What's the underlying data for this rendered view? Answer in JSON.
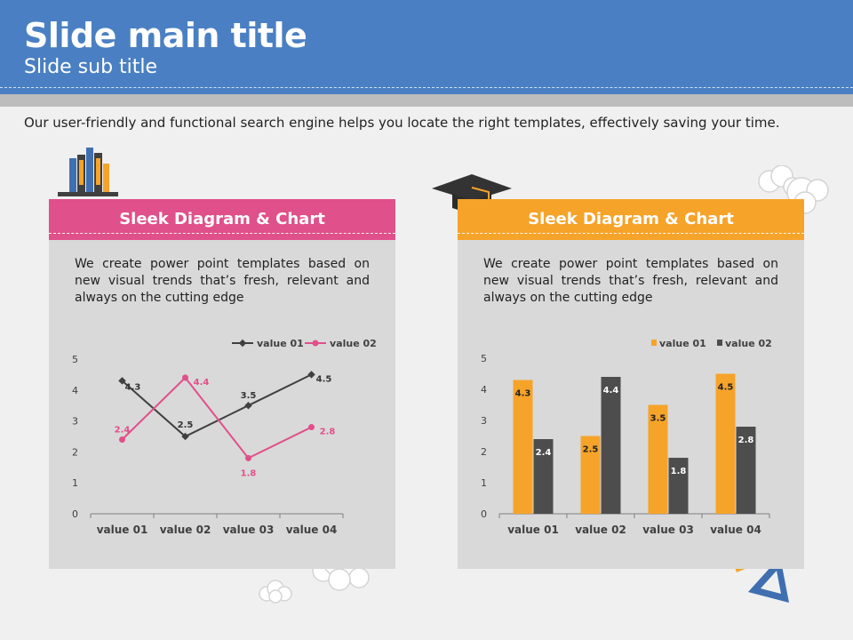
{
  "slide": {
    "title": "Slide main title",
    "subtitle": "Slide sub title",
    "intro": "Our user-friendly and functional search engine helps you locate the right templates, effectively saving your time."
  },
  "colors": {
    "header_blue": "#4a80c3",
    "pink": "#e0508a",
    "orange": "#f6a32a",
    "dark_gray": "#4d4d4d",
    "panel_bg": "#d9d9d9"
  },
  "panels": [
    {
      "heading": "Sleek Diagram  & Chart",
      "text": "We create power point templates based on new visual trends that’s fresh, relevant and always on the cutting edge",
      "icon": "books-icon"
    },
    {
      "heading": "Sleek Diagram  & Chart",
      "text": "We create power point templates based on new visual trends that’s fresh, relevant and always on the cutting edge",
      "icon": "graduation-cap-icon"
    }
  ],
  "chart_data": [
    {
      "type": "line",
      "categories": [
        "value 01",
        "value 02",
        "value 03",
        "value 04"
      ],
      "series": [
        {
          "name": "value 01",
          "values": [
            4.3,
            2.5,
            3.5,
            4.5
          ],
          "color": "#404040"
        },
        {
          "name": "value 02",
          "values": [
            2.4,
            4.4,
            1.8,
            2.8
          ],
          "color": "#e0508a"
        }
      ],
      "ylim": [
        0,
        5
      ],
      "yticks": [
        "0",
        "1",
        "2",
        "3",
        "4",
        "5"
      ],
      "legend": "top-right",
      "grid": false
    },
    {
      "type": "bar",
      "categories": [
        "value 01",
        "value 02",
        "value 03",
        "value 04"
      ],
      "series": [
        {
          "name": "value 01",
          "values": [
            4.3,
            2.5,
            3.5,
            4.5
          ],
          "color": "#f6a32a"
        },
        {
          "name": "value 02",
          "values": [
            2.4,
            4.4,
            1.8,
            2.8
          ],
          "color": "#4d4d4d"
        }
      ],
      "ylim": [
        0,
        5
      ],
      "yticks": [
        "0",
        "1",
        "2",
        "3",
        "4",
        "5"
      ],
      "legend": "top-right",
      "grid": false
    }
  ]
}
